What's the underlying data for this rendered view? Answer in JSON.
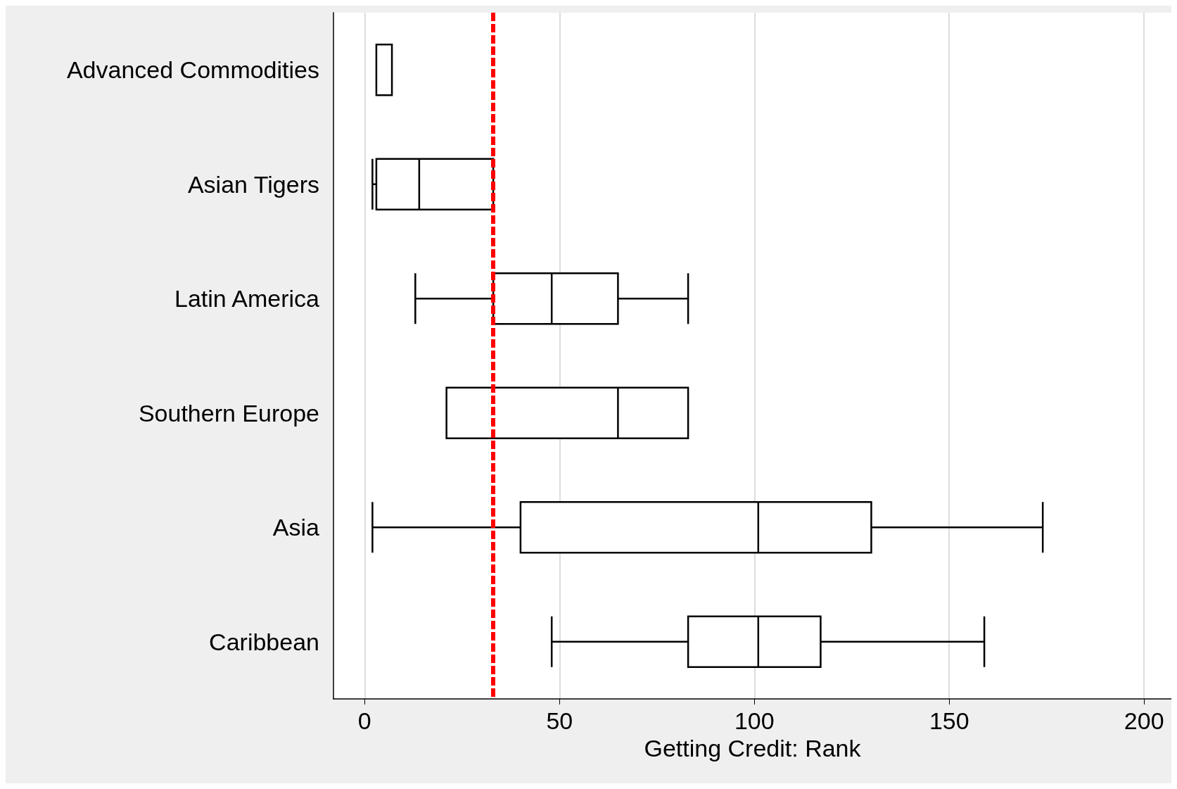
{
  "chart_data": {
    "type": "box",
    "orientation": "horizontal",
    "xlabel": "Getting Credit: Rank",
    "categories": [
      "Advanced Commodities",
      "Asian Tigers",
      "Latin America",
      "Southern Europe",
      "Asia",
      "Caribbean"
    ],
    "boxes": [
      {
        "low": 3,
        "q1": 3,
        "median": 3,
        "q3": 7,
        "high": 7
      },
      {
        "low": 2,
        "q1": 3,
        "median": 14,
        "q3": 33,
        "high": 33
      },
      {
        "low": 13,
        "q1": 33,
        "median": 48,
        "q3": 65,
        "high": 83
      },
      {
        "low": 21,
        "q1": 21,
        "median": 65,
        "q3": 83,
        "high": 83
      },
      {
        "low": 2,
        "q1": 40,
        "median": 101,
        "q3": 130,
        "high": 174
      },
      {
        "low": 48,
        "q1": 83,
        "median": 101,
        "q3": 117,
        "high": 159
      }
    ],
    "color": "#000000",
    "xlim": [
      -8,
      207
    ],
    "xticks": [
      0,
      50,
      100,
      150,
      200
    ],
    "grid": "x",
    "ref_lines": [
      {
        "axis": "x",
        "value": 33,
        "color": "#ff0000",
        "line_style": "dashed"
      }
    ]
  }
}
